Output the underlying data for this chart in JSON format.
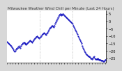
{
  "title": "Milwaukee Weather Wind Chill per Minute (Last 24 Hours)",
  "line_color": "#0000bb",
  "background_color": "#d8d8d8",
  "plot_bg_color": "#ffffff",
  "ylim": [
    -28,
    7
  ],
  "yticks": [
    5,
    0,
    -5,
    -10,
    -15,
    -20,
    -25
  ],
  "ylabel_fontsize": 3.5,
  "title_fontsize": 3.8,
  "y_values": [
    -14,
    -14.5,
    -15,
    -15.5,
    -16,
    -16.5,
    -17,
    -17.5,
    -18,
    -19,
    -20,
    -20.5,
    -20,
    -19,
    -18.5,
    -18,
    -17.5,
    -17,
    -17.5,
    -18,
    -17,
    -16,
    -15.5,
    -15,
    -14.5,
    -14.5,
    -15,
    -15.5,
    -16,
    -15.5,
    -15,
    -14.5,
    -14,
    -13.5,
    -13,
    -13.5,
    -14,
    -14.5,
    -13.5,
    -13,
    -12,
    -11.5,
    -11,
    -10.5,
    -10,
    -10.5,
    -11,
    -11.5,
    -11,
    -10.5,
    -10,
    -9.5,
    -9,
    -8.5,
    -8,
    -8.5,
    -9,
    -9.5,
    -8.5,
    -8,
    -7,
    -6,
    -5,
    -4.5,
    -4,
    -3.5,
    -3,
    -3.5,
    -4,
    -3,
    -2,
    -1,
    0,
    1,
    2,
    3,
    4,
    4.5,
    5,
    4.5,
    4,
    4.5,
    5,
    4.5,
    4,
    3.5,
    3,
    2.5,
    2,
    1.5,
    1,
    0.5,
    0,
    -0.5,
    -1,
    -1.5,
    -2,
    -3,
    -4,
    -5,
    -6,
    -7,
    -8,
    -9,
    -10,
    -11,
    -12,
    -13,
    -14,
    -15,
    -17,
    -18,
    -19,
    -20,
    -21,
    -22,
    -22.5,
    -23,
    -23.5,
    -24,
    -24,
    -24.5,
    -25,
    -25,
    -25.5,
    -25,
    -24.5,
    -24,
    -25,
    -25.5,
    -25.5,
    -25.5,
    -25.5,
    -25,
    -25.5,
    -26,
    -26,
    -26,
    -26.5,
    -26.5,
    -26.5,
    -27,
    -27,
    -26.5,
    -26,
    -26
  ],
  "vlines": [
    48,
    96
  ],
  "vline_color": "#999999",
  "markersize": 0.9,
  "linewidth": 0.6
}
